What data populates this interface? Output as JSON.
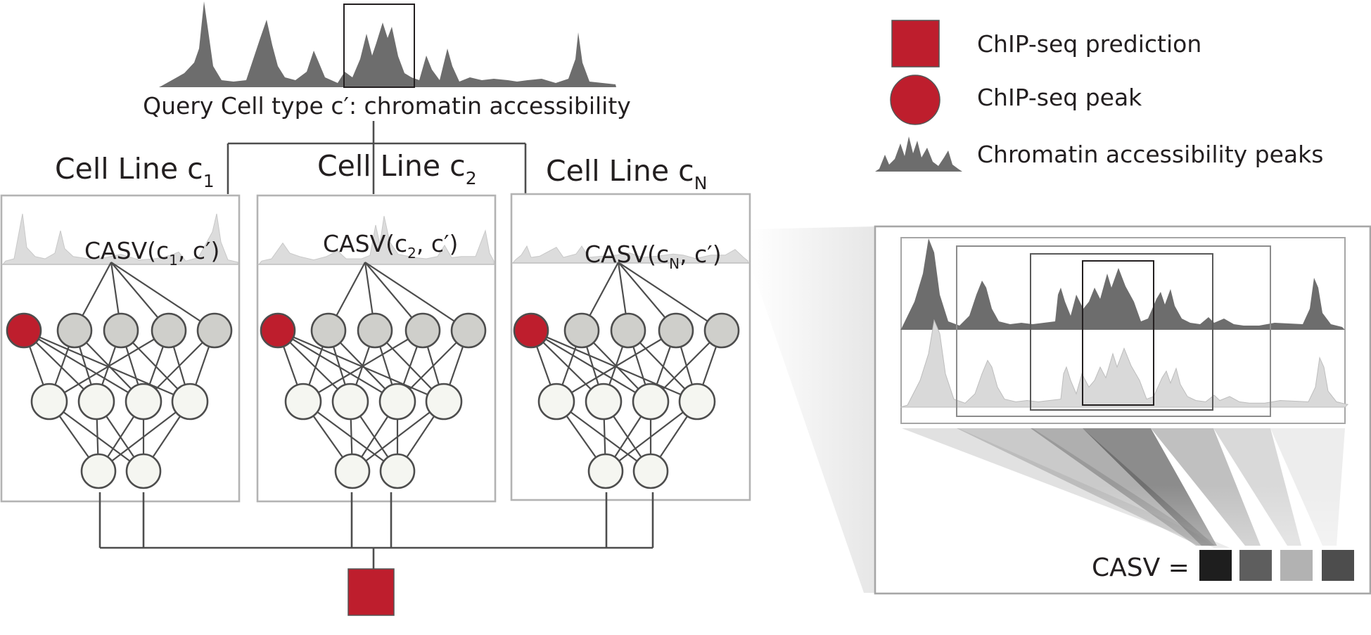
{
  "query_label": "Query Cell type c′: chromatin accessibility",
  "cell_lines": [
    {
      "title": "Cell Line c",
      "sub": "1",
      "casv_pre": "CASV(c",
      "casv_sub": "1",
      "casv_post": ", c′)"
    },
    {
      "title": "Cell Line c",
      "sub": "2",
      "casv_pre": "CASV(c",
      "casv_sub": "2",
      "casv_post": ", c′)"
    },
    {
      "title": "Cell Line c",
      "sub": "N",
      "casv_pre": "CASV(c",
      "casv_sub": "N",
      "casv_post": ", c′)"
    }
  ],
  "legend": {
    "prediction": "ChIP-seq prediction",
    "peak": "ChIP-seq peak",
    "accessibility": "Chromatin accessibility peaks"
  },
  "casv_equation": "CASV =",
  "casv_swatches": [
    "#1e1e1e",
    "#5e5e5e",
    "#b2b2b2",
    "#4d4d4d"
  ],
  "colors": {
    "accent_red": "#be1e2d",
    "track_dark": "#6d6d6d",
    "track_light": "#d9d9d9",
    "node_gray": "#cfcfcb",
    "node_white": "#f5f6f1"
  }
}
